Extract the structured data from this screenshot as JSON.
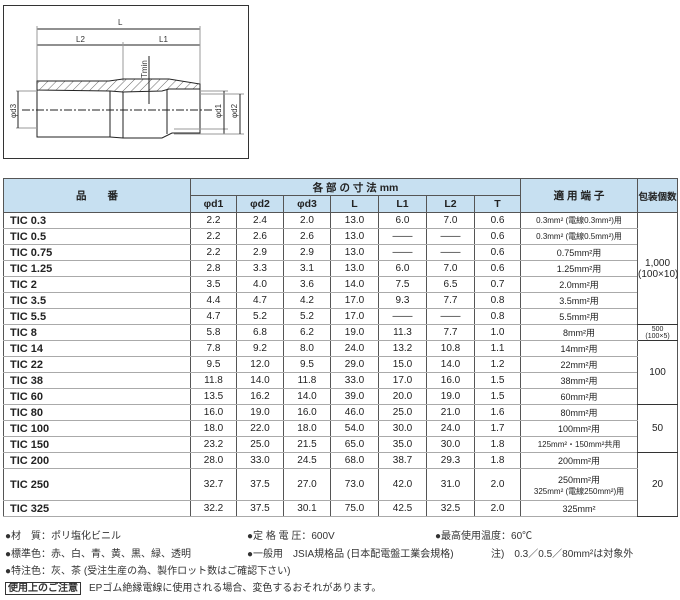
{
  "diagram": {
    "labels": {
      "L": "L",
      "L1": "L1",
      "L2": "L2",
      "T": "Tmin",
      "d1": "φd1",
      "d2": "φd2",
      "d3": "φd3"
    }
  },
  "table": {
    "header": {
      "name": "品　　番",
      "dims": "各 部 の 寸 法 mm",
      "terminal": "適 用 端 子",
      "pack": "包装個数",
      "cols": [
        "φd1",
        "φd2",
        "φd3",
        "L",
        "L1",
        "L2",
        "T"
      ]
    },
    "rows": [
      {
        "name": "TIC 0.3",
        "v": [
          "2.2",
          "2.4",
          "2.0",
          "13.0",
          "6.0",
          "7.0",
          "0.6"
        ],
        "terminal": "0.3mm² (電線0.3mm²)用"
      },
      {
        "name": "TIC 0.5",
        "v": [
          "2.2",
          "2.6",
          "2.6",
          "13.0",
          "——",
          "——",
          "0.6"
        ],
        "terminal": "0.3mm² (電線0.5mm²)用"
      },
      {
        "name": "TIC 0.75",
        "v": [
          "2.2",
          "2.9",
          "2.9",
          "13.0",
          "——",
          "——",
          "0.6"
        ],
        "terminal": "0.75mm²用"
      },
      {
        "name": "TIC 1.25",
        "v": [
          "2.8",
          "3.3",
          "3.1",
          "13.0",
          "6.0",
          "7.0",
          "0.6"
        ],
        "terminal": "1.25mm²用"
      },
      {
        "name": "TIC 2",
        "v": [
          "3.5",
          "4.0",
          "3.6",
          "14.0",
          "7.5",
          "6.5",
          "0.7"
        ],
        "terminal": "2.0mm²用"
      },
      {
        "name": "TIC 3.5",
        "v": [
          "4.4",
          "4.7",
          "4.2",
          "17.0",
          "9.3",
          "7.7",
          "0.8"
        ],
        "terminal": "3.5mm²用"
      },
      {
        "name": "TIC 5.5",
        "v": [
          "4.7",
          "5.2",
          "5.2",
          "17.0",
          "——",
          "——",
          "0.8"
        ],
        "terminal": "5.5mm²用"
      },
      {
        "name": "TIC 8",
        "v": [
          "5.8",
          "6.8",
          "6.2",
          "19.0",
          "11.3",
          "7.7",
          "1.0"
        ],
        "terminal": "8mm²用"
      },
      {
        "name": "TIC 14",
        "v": [
          "7.8",
          "9.2",
          "8.0",
          "24.0",
          "13.2",
          "10.8",
          "1.1"
        ],
        "terminal": "14mm²用"
      },
      {
        "name": "TIC 22",
        "v": [
          "9.5",
          "12.0",
          "9.5",
          "29.0",
          "15.0",
          "14.0",
          "1.2"
        ],
        "terminal": "22mm²用"
      },
      {
        "name": "TIC 38",
        "v": [
          "11.8",
          "14.0",
          "11.8",
          "33.0",
          "17.0",
          "16.0",
          "1.5"
        ],
        "terminal": "38mm²用"
      },
      {
        "name": "TIC 60",
        "v": [
          "13.5",
          "16.2",
          "14.0",
          "39.0",
          "20.0",
          "19.0",
          "1.5"
        ],
        "terminal": "60mm²用"
      },
      {
        "name": "TIC 80",
        "v": [
          "16.0",
          "19.0",
          "16.0",
          "46.0",
          "25.0",
          "21.0",
          "1.6"
        ],
        "terminal": "80mm²用"
      },
      {
        "name": "TIC 100",
        "v": [
          "18.0",
          "22.0",
          "18.0",
          "54.0",
          "30.0",
          "24.0",
          "1.7"
        ],
        "terminal": "100mm²用"
      },
      {
        "name": "TIC 150",
        "v": [
          "23.2",
          "25.0",
          "21.5",
          "65.0",
          "35.0",
          "30.0",
          "1.8"
        ],
        "terminal": "125mm²・150mm²共用"
      },
      {
        "name": "TIC 200",
        "v": [
          "28.0",
          "33.0",
          "24.5",
          "68.0",
          "38.7",
          "29.3",
          "1.8"
        ],
        "terminal": "200mm²用"
      },
      {
        "name": "TIC 250",
        "v": [
          "32.7",
          "37.5",
          "27.0",
          "73.0",
          "42.0",
          "31.0",
          "2.0"
        ],
        "terminal": "250mm²用",
        "terminal2": "325mm² (電線250mm²)用"
      },
      {
        "name": "TIC 325",
        "v": [
          "32.2",
          "37.5",
          "30.1",
          "75.0",
          "42.5",
          "32.5",
          "2.0"
        ],
        "terminal": "325mm²"
      }
    ],
    "packs": [
      {
        "start": 0,
        "span": 7,
        "line1": "1,000",
        "line2": "(100×10)"
      },
      {
        "start": 7,
        "span": 1,
        "line1": "500",
        "line2": "(100×5)"
      },
      {
        "start": 8,
        "span": 4,
        "line1": "100",
        "line2": ""
      },
      {
        "start": 12,
        "span": 3,
        "line1": "50",
        "line2": ""
      },
      {
        "start": 15,
        "span": 3,
        "line1": "20",
        "line2": ""
      }
    ]
  },
  "notes": {
    "material": "●材　質：ポリ塩化ビニル",
    "voltage": "●定 格 電 圧：600V",
    "temp": "●最高使用温度：60℃",
    "colors": "●標準色：赤、白、青、黄、黒、緑、透明",
    "jsia": "●一般用　JSIA規格品 (日本配電盤工業会規格)",
    "note": "注)　0.3／0.5／80mm²は対象外",
    "special": "●特注色：灰、茶 (受注生産の為、製作ロット数はご確認下さい)",
    "caution_label": "使用上のご注意",
    "caution_text": "EPゴム絶縁電線に使用される場合、変色するおそれがあります。"
  },
  "colors": {
    "header_bg": "#c7e0f1"
  }
}
